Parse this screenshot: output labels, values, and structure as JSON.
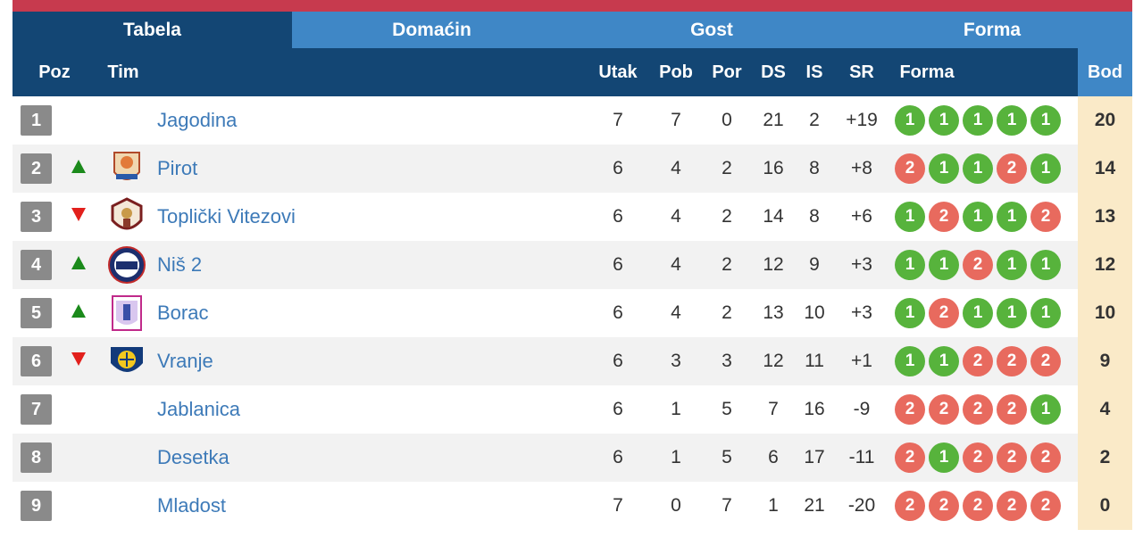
{
  "tabs": [
    {
      "label": "Tabela",
      "active": true
    },
    {
      "label": "Domaćin",
      "active": false
    },
    {
      "label": "Gost",
      "active": false
    },
    {
      "label": "Forma",
      "active": false
    }
  ],
  "headers": {
    "poz": "Poz",
    "tim": "Tim",
    "utak": "Utak",
    "pob": "Pob",
    "por": "Por",
    "ds": "DS",
    "is": "IS",
    "sr": "SR",
    "forma": "Forma",
    "bod": "Bod"
  },
  "colors": {
    "accent_red": "#c73a4e",
    "header_dark": "#134674",
    "header_light": "#3f87c6",
    "win": "#57b33c",
    "loss": "#e86a5e",
    "bod_bg": "#faeac8",
    "team_link": "#3d7ab8"
  },
  "rows": [
    {
      "poz": "1",
      "trend": "none",
      "logo": "none",
      "team": "Jagodina",
      "utak": "7",
      "pob": "7",
      "por": "0",
      "ds": "21",
      "is": "2",
      "sr": "+19",
      "forma": [
        "1",
        "1",
        "1",
        "1",
        "1"
      ],
      "bod": "20"
    },
    {
      "poz": "2",
      "trend": "up",
      "logo": "pirot-crest-icon",
      "team": "Pirot",
      "utak": "6",
      "pob": "4",
      "por": "2",
      "ds": "16",
      "is": "8",
      "sr": "+8",
      "forma": [
        "2",
        "1",
        "1",
        "2",
        "1"
      ],
      "bod": "14"
    },
    {
      "poz": "3",
      "trend": "down",
      "logo": "toplicki-vitezovi-crest-icon",
      "team": "Toplički Vitezovi",
      "utak": "6",
      "pob": "4",
      "por": "2",
      "ds": "14",
      "is": "8",
      "sr": "+6",
      "forma": [
        "1",
        "2",
        "1",
        "1",
        "2"
      ],
      "bod": "13"
    },
    {
      "poz": "4",
      "trend": "up",
      "logo": "nis-crest-icon",
      "team": "Niš 2",
      "utak": "6",
      "pob": "4",
      "por": "2",
      "ds": "12",
      "is": "9",
      "sr": "+3",
      "forma": [
        "1",
        "1",
        "2",
        "1",
        "1"
      ],
      "bod": "12"
    },
    {
      "poz": "5",
      "trend": "up",
      "logo": "borac-crest-icon",
      "team": "Borac",
      "utak": "6",
      "pob": "4",
      "por": "2",
      "ds": "13",
      "is": "10",
      "sr": "+3",
      "forma": [
        "1",
        "2",
        "1",
        "1",
        "1"
      ],
      "bod": "10"
    },
    {
      "poz": "6",
      "trend": "down",
      "logo": "vranje-crest-icon",
      "team": "Vranje",
      "utak": "6",
      "pob": "3",
      "por": "3",
      "ds": "12",
      "is": "11",
      "sr": "+1",
      "forma": [
        "1",
        "1",
        "2",
        "2",
        "2"
      ],
      "bod": "9"
    },
    {
      "poz": "7",
      "trend": "none",
      "logo": "none",
      "team": "Jablanica",
      "utak": "6",
      "pob": "1",
      "por": "5",
      "ds": "7",
      "is": "16",
      "sr": "-9",
      "forma": [
        "2",
        "2",
        "2",
        "2",
        "1"
      ],
      "bod": "4"
    },
    {
      "poz": "8",
      "trend": "none",
      "logo": "none",
      "team": "Desetka",
      "utak": "6",
      "pob": "1",
      "por": "5",
      "ds": "6",
      "is": "17",
      "sr": "-11",
      "forma": [
        "2",
        "1",
        "2",
        "2",
        "2"
      ],
      "bod": "2"
    },
    {
      "poz": "9",
      "trend": "none",
      "logo": "none",
      "team": "Mladost",
      "utak": "7",
      "pob": "0",
      "por": "7",
      "ds": "1",
      "is": "21",
      "sr": "-20",
      "forma": [
        "2",
        "2",
        "2",
        "2",
        "2"
      ],
      "bod": "0"
    }
  ]
}
